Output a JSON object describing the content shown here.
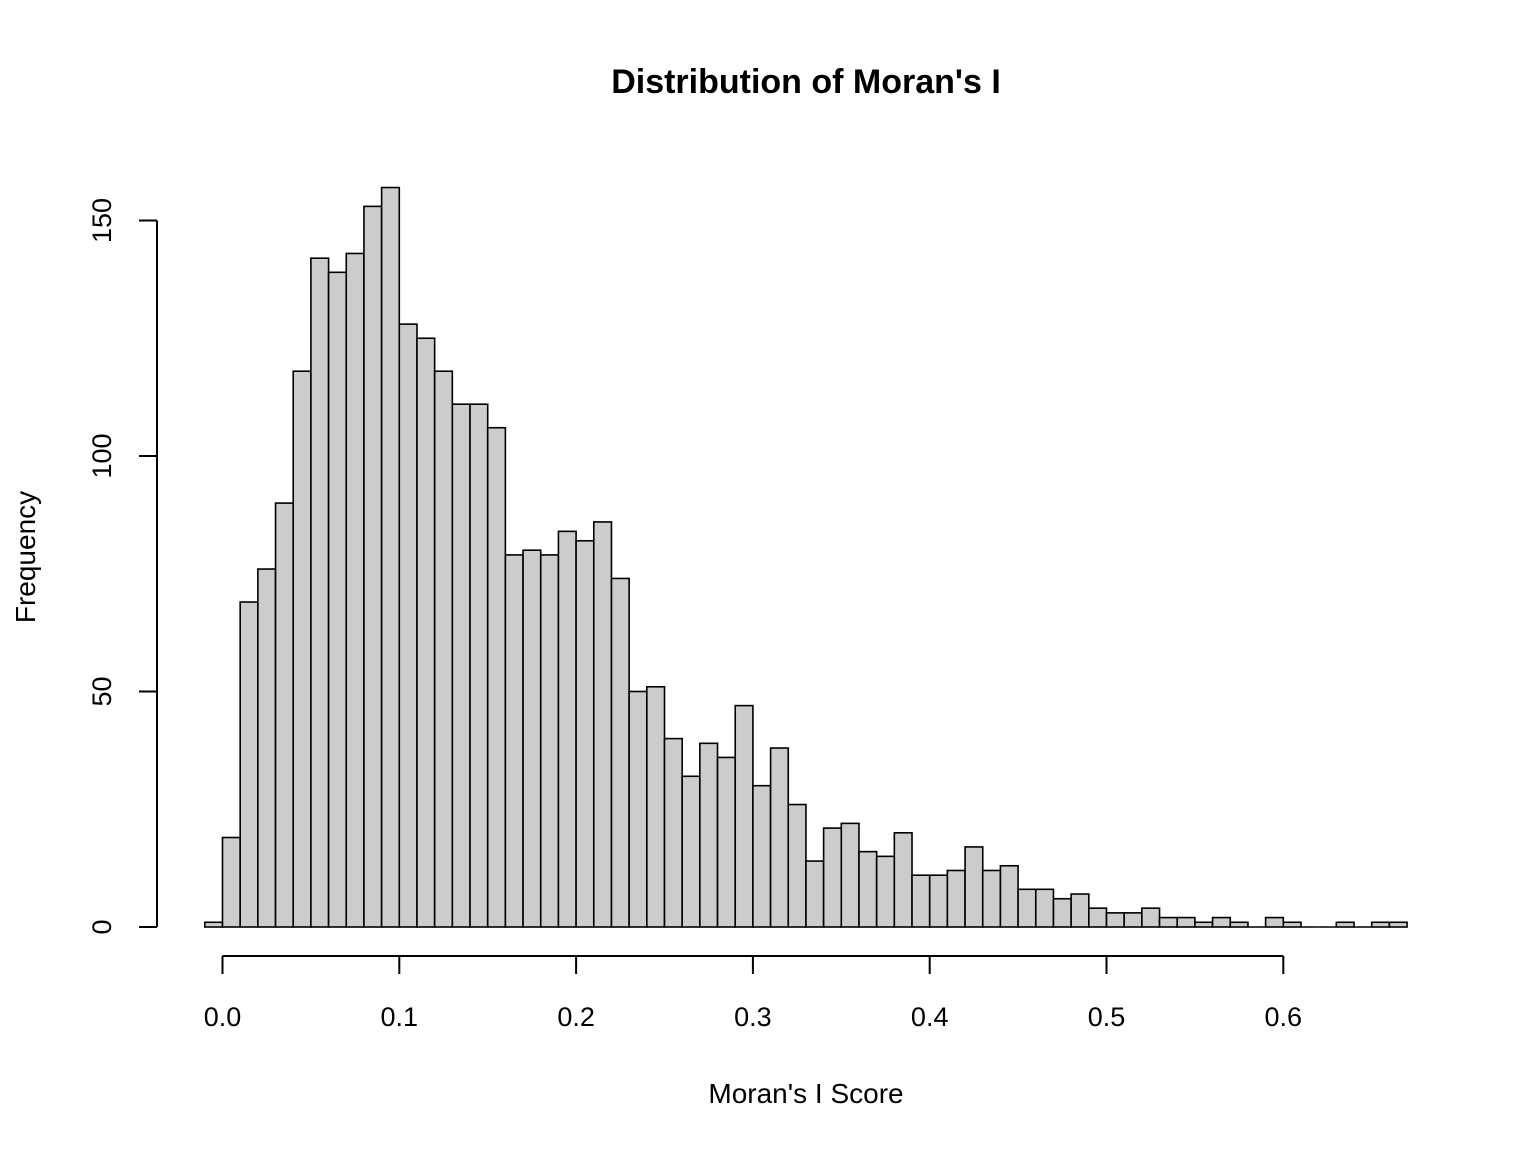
{
  "chart_data": {
    "type": "bar",
    "title": "Distribution of Moran's I",
    "xlabel": "Moran's I Score",
    "ylabel": "Frequency",
    "bar_color": "#cccccc",
    "border_color": "#000000",
    "grid": false,
    "bin_width": 0.01,
    "bin_start": -0.01,
    "xlim": [
      -0.01,
      0.67
    ],
    "ylim": [
      0,
      157
    ],
    "x_ticks": [
      0.0,
      0.1,
      0.2,
      0.3,
      0.4,
      0.5,
      0.6
    ],
    "x_tick_labels": [
      "0.0",
      "0.1",
      "0.2",
      "0.3",
      "0.4",
      "0.5",
      "0.6"
    ],
    "y_ticks": [
      0,
      50,
      100,
      150
    ],
    "y_tick_labels": [
      "0",
      "50",
      "100",
      "150"
    ],
    "values": [
      1,
      19,
      69,
      76,
      90,
      118,
      142,
      139,
      143,
      153,
      157,
      128,
      125,
      118,
      111,
      111,
      106,
      79,
      80,
      79,
      84,
      82,
      86,
      74,
      50,
      51,
      40,
      32,
      39,
      36,
      47,
      30,
      38,
      26,
      14,
      21,
      22,
      16,
      15,
      20,
      11,
      11,
      12,
      17,
      12,
      13,
      8,
      8,
      6,
      7,
      4,
      3,
      3,
      4,
      2,
      2,
      1,
      2,
      1,
      0,
      2,
      1,
      0,
      0,
      1,
      0,
      1,
      1
    ]
  }
}
